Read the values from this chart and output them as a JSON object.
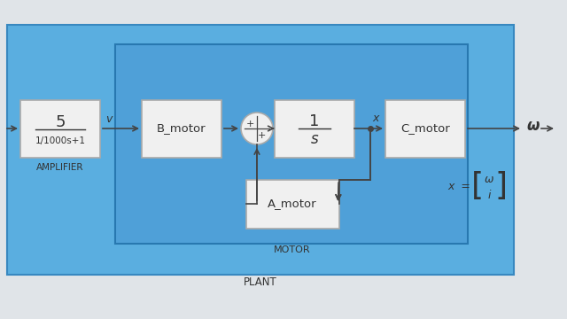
{
  "bg_outer": "#e0e4e8",
  "bg_plant": "#5aaee0",
  "bg_motor": "#4fa0d8",
  "box_fill": "#f0f0f0",
  "box_edge": "#aaaaaa",
  "line_color": "#444444",
  "text_color": "#333333",
  "amplifier_line1": "5",
  "amplifier_line2": "1/1000s+1",
  "amplifier_label": "AMPLIFIER",
  "b_motor_text": "B_motor",
  "integrator_line1": "1",
  "integrator_line2": "s",
  "c_motor_text": "C_motor",
  "a_motor_text": "A_motor",
  "motor_label": "MOTOR",
  "plant_label": "PLANT",
  "v_label": "v",
  "x_label": "x",
  "omega_label": "ω",
  "state_vec_top": "ω",
  "state_vec_bot": "i",
  "figsize": [
    6.4,
    3.6
  ],
  "dpi": 100
}
